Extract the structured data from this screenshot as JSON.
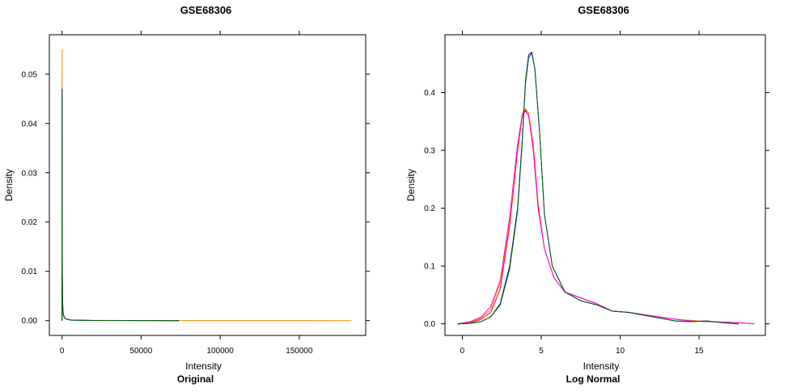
{
  "chart_data": [
    {
      "type": "line",
      "title": "GSE68306",
      "xlabel": "Intensity",
      "ylabel": "Density",
      "subtitle": "Original",
      "xlim": [
        -8000,
        192000
      ],
      "ylim": [
        -0.003,
        0.058
      ],
      "xticks": [
        0,
        50000,
        100000,
        150000
      ],
      "xtick_labels": [
        "0",
        "50000",
        "100000",
        "150000"
      ],
      "yticks": [
        0,
        0.01,
        0.02,
        0.03,
        0.04,
        0.05
      ],
      "ytick_labels": [
        "0.00",
        "0.01",
        "0.02",
        "0.03",
        "0.04",
        "0.05"
      ],
      "grid": false,
      "series": [
        {
          "color": "#ff8c00",
          "x": [
            0,
            60,
            120,
            200,
            400,
            800,
            1500,
            3000,
            6000,
            20000,
            60000,
            120000,
            183000
          ],
          "y": [
            0,
            0.055,
            0.03,
            0.012,
            0.004,
            0.0015,
            0.0007,
            0.0003,
            0.00015,
            5e-05,
            2e-05,
            1e-05,
            0
          ]
        },
        {
          "color": "#0000cd",
          "x": [
            0,
            60,
            120,
            200,
            400,
            800,
            1500,
            3000,
            6000,
            20000,
            74000
          ],
          "y": [
            0,
            0.047,
            0.026,
            0.01,
            0.0035,
            0.0013,
            0.0006,
            0.00025,
            0.0001,
            4e-05,
            0
          ]
        },
        {
          "color": "#006400",
          "x": [
            0,
            60,
            120,
            200,
            400,
            800,
            1500,
            3000,
            6000,
            20000,
            74000
          ],
          "y": [
            0,
            0.046,
            0.025,
            0.009,
            0.003,
            0.0012,
            0.0006,
            0.00025,
            0.0001,
            4e-05,
            0
          ]
        }
      ]
    },
    {
      "type": "line",
      "title": "GSE68306",
      "xlabel": "Intensity",
      "ylabel": "Density",
      "subtitle": "Log Normal",
      "xlim": [
        -1.1,
        19.2
      ],
      "ylim": [
        -0.02,
        0.5
      ],
      "xticks": [
        0,
        5,
        10,
        15
      ],
      "xtick_labels": [
        "0",
        "5",
        "10",
        "15"
      ],
      "yticks": [
        0,
        0.1,
        0.2,
        0.3,
        0.4
      ],
      "ytick_labels": [
        "0.0",
        "0.1",
        "0.2",
        "0.3",
        "0.4"
      ],
      "grid": false,
      "series": [
        {
          "color": "#ff0000",
          "x": [
            -0.3,
            0.5,
            1.2,
            1.8,
            2.4,
            3.0,
            3.5,
            3.8,
            4.0,
            4.2,
            4.5,
            4.8,
            5.2,
            5.8,
            6.5,
            7.5,
            8.5,
            9.5,
            10.5,
            11.5,
            12.5,
            13.5,
            14.5,
            15.5,
            16.5,
            17.5,
            18.5
          ],
          "y": [
            0,
            0.002,
            0.008,
            0.02,
            0.06,
            0.17,
            0.3,
            0.36,
            0.37,
            0.36,
            0.3,
            0.2,
            0.13,
            0.08,
            0.055,
            0.045,
            0.035,
            0.022,
            0.02,
            0.016,
            0.012,
            0.008,
            0.005,
            0.004,
            0.003,
            0.002,
            0
          ]
        },
        {
          "color": "#ff8c00",
          "x": [
            -0.3,
            0.5,
            1.2,
            1.8,
            2.4,
            3.0,
            3.5,
            3.8,
            4.0,
            4.2,
            4.5,
            4.8,
            5.2,
            5.8,
            6.5,
            7.5,
            8.5,
            9.5,
            10.5,
            11.5,
            12.5,
            13.5,
            14.5,
            15.5,
            16.5,
            17.5,
            18.5
          ],
          "y": [
            0,
            0.003,
            0.01,
            0.025,
            0.07,
            0.18,
            0.31,
            0.365,
            0.372,
            0.365,
            0.31,
            0.21,
            0.13,
            0.08,
            0.055,
            0.045,
            0.035,
            0.022,
            0.02,
            0.016,
            0.012,
            0.008,
            0.006,
            0.004,
            0.003,
            0.002,
            0
          ]
        },
        {
          "color": "#ff00ff",
          "x": [
            -0.3,
            0.5,
            1.2,
            1.8,
            2.4,
            3.0,
            3.5,
            3.8,
            4.0,
            4.2,
            4.5,
            4.8,
            5.2,
            5.8,
            6.5,
            7.5,
            8.5,
            9.5,
            10.5,
            11.5,
            12.5,
            13.5,
            14.5,
            15.5,
            16.5,
            17.5,
            18.5
          ],
          "y": [
            0,
            0.004,
            0.012,
            0.03,
            0.075,
            0.185,
            0.31,
            0.36,
            0.368,
            0.36,
            0.305,
            0.205,
            0.13,
            0.08,
            0.055,
            0.045,
            0.035,
            0.022,
            0.02,
            0.016,
            0.012,
            0.008,
            0.005,
            0.004,
            0.003,
            0.002,
            0
          ]
        },
        {
          "color": "#0000cd",
          "x": [
            -0.3,
            0.5,
            1.2,
            1.8,
            2.4,
            3.0,
            3.5,
            3.8,
            4.0,
            4.2,
            4.4,
            4.6,
            4.9,
            5.2,
            5.7,
            6.5,
            7.5,
            8.5,
            9.5,
            10.5,
            11.5,
            12.5,
            13.5,
            14.5,
            15.5,
            16.5,
            17.5
          ],
          "y": [
            0,
            0.001,
            0.004,
            0.012,
            0.035,
            0.1,
            0.2,
            0.32,
            0.42,
            0.465,
            0.47,
            0.44,
            0.33,
            0.19,
            0.1,
            0.055,
            0.04,
            0.033,
            0.022,
            0.02,
            0.015,
            0.01,
            0.005,
            0.004,
            0.005,
            0.002,
            0
          ]
        },
        {
          "color": "#006400",
          "x": [
            -0.3,
            0.5,
            1.2,
            1.8,
            2.4,
            3.0,
            3.5,
            3.8,
            4.0,
            4.2,
            4.4,
            4.6,
            4.9,
            5.2,
            5.7,
            6.5,
            7.5,
            8.5,
            9.5,
            10.5,
            11.5,
            12.5,
            13.5,
            14.5,
            15.5,
            16.5,
            17.5
          ],
          "y": [
            0,
            0.001,
            0.004,
            0.012,
            0.033,
            0.095,
            0.195,
            0.315,
            0.415,
            0.46,
            0.468,
            0.44,
            0.33,
            0.19,
            0.1,
            0.055,
            0.04,
            0.033,
            0.022,
            0.02,
            0.015,
            0.01,
            0.005,
            0.004,
            0.005,
            0.002,
            0
          ]
        }
      ]
    }
  ]
}
